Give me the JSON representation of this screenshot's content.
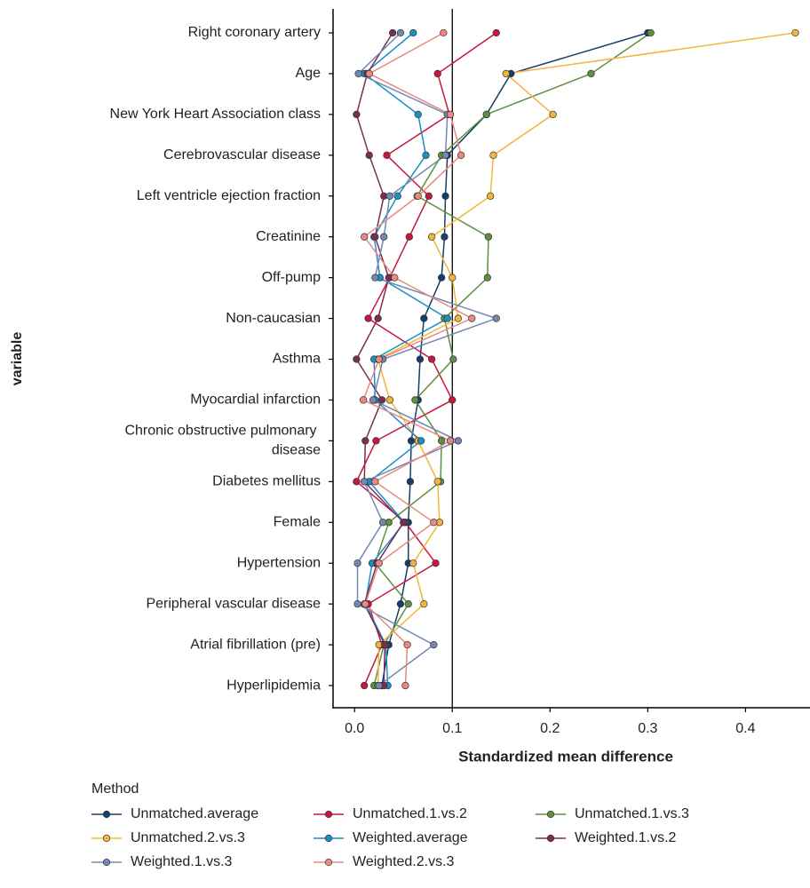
{
  "chart_data": {
    "type": "dotline",
    "x_label": "Standardized mean difference",
    "y_label": "variable",
    "legend_title": "Method",
    "categories": [
      "Right coronary artery",
      "Age",
      "New York Heart Association class",
      "Cerebrovascular disease",
      "Left ventricle ejection fraction",
      "Creatinine",
      "Off-pump",
      "Non-caucasian",
      "Asthma",
      "Myocardial infarction",
      "Chronic obstructive pulmonary disease",
      "Diabetes mellitus",
      "Female",
      "Hypertension",
      "Peripheral vascular disease",
      "Atrial fibrillation (pre)",
      "Hyperlipidemia"
    ],
    "xlim": [
      -0.022,
      0.466
    ],
    "xticks": [
      {
        "value": 0,
        "label": "0.0"
      },
      0.1,
      0.2,
      0.3,
      0.4
    ],
    "reference_line": 0.1,
    "series": [
      {
        "name": "Unmatched.average",
        "color": "#173e6b",
        "values": [
          0.3,
          0.16,
          0.135,
          0.095,
          0.093,
          0.092,
          0.089,
          0.071,
          0.067,
          0.065,
          0.058,
          0.057,
          0.055,
          0.055,
          0.047,
          0.035,
          0.028
        ]
      },
      {
        "name": "Unmatched.1.vs.2",
        "color": "#c8173f",
        "values": [
          0.145,
          0.085,
          0.097,
          0.033,
          0.076,
          0.056,
          0.036,
          0.014,
          0.079,
          0.1,
          0.022,
          0.002,
          0.052,
          0.083,
          0.014,
          0.028,
          0.01
        ]
      },
      {
        "name": "Unmatched.1.vs.3",
        "color": "#5c9140",
        "values": [
          0.303,
          0.242,
          0.135,
          0.089,
          0.064,
          0.137,
          0.136,
          0.092,
          0.101,
          0.062,
          0.089,
          0.088,
          0.035,
          0.021,
          0.055,
          0.03,
          0.02
        ]
      },
      {
        "name": "Unmatched.2.vs.3",
        "color": "#f2b53a",
        "values": [
          0.451,
          0.155,
          0.203,
          0.142,
          0.139,
          0.079,
          0.1,
          0.106,
          0.024,
          0.036,
          0.065,
          0.085,
          0.087,
          0.06,
          0.071,
          0.025,
          0.024
        ]
      },
      {
        "name": "Weighted.average",
        "color": "#1b90c4",
        "values": [
          0.06,
          0.01,
          0.065,
          0.073,
          0.044,
          0.02,
          0.026,
          0.095,
          0.02,
          0.021,
          0.068,
          0.015,
          0.051,
          0.018,
          0.011,
          0.032,
          0.034
        ]
      },
      {
        "name": "Weighted.1.vs.2",
        "color": "#7b2d55",
        "values": [
          0.039,
          0.013,
          0.002,
          0.015,
          0.03,
          0.021,
          0.035,
          0.024,
          0.002,
          0.028,
          0.011,
          0.01,
          0.05,
          0.023,
          0.01,
          0.031,
          0.03
        ]
      },
      {
        "name": "Weighted.1.vs.3",
        "color": "#7189b1",
        "values": [
          0.047,
          0.004,
          0.095,
          0.093,
          0.036,
          0.03,
          0.021,
          0.145,
          0.029,
          0.019,
          0.106,
          0.01,
          0.029,
          0.003,
          0.003,
          0.081,
          0.025
        ]
      },
      {
        "name": "Weighted.2.vs.3",
        "color": "#e98a80",
        "values": [
          0.091,
          0.015,
          0.098,
          0.109,
          0.065,
          0.01,
          0.041,
          0.12,
          0.025,
          0.009,
          0.098,
          0.021,
          0.081,
          0.025,
          0.011,
          0.054,
          0.052
        ]
      }
    ]
  }
}
